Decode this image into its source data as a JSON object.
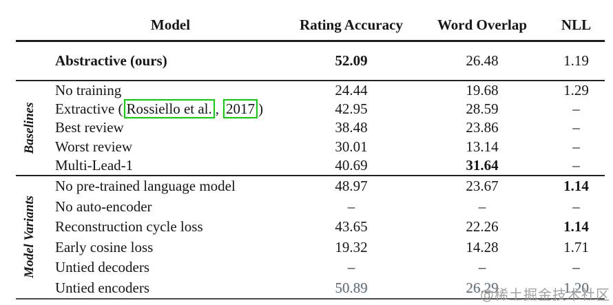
{
  "table": {
    "headers": {
      "model": "Model",
      "rating": "Rating Accuracy",
      "overlap": "Word Overlap",
      "nll": "NLL"
    },
    "top_row": {
      "model": "Abstractive (ours)",
      "rating": "52.09",
      "overlap": "26.48",
      "nll": "1.19"
    },
    "sections": [
      {
        "label": "Baselines",
        "rows": [
          {
            "model": "No training",
            "rating": "24.44",
            "overlap": "19.68",
            "nll": "1.29"
          },
          {
            "model_prefix": "Extractive (",
            "citation_name": "Rossiello et al.",
            "citation_sep": ",",
            "citation_year": "2017",
            "model_suffix": ")",
            "rating": "42.95",
            "overlap": "28.59",
            "nll": "–"
          },
          {
            "model": "Best review",
            "rating": "38.48",
            "overlap": "23.86",
            "nll": "–"
          },
          {
            "model": "Worst review",
            "rating": "30.01",
            "overlap": "13.14",
            "nll": "–"
          },
          {
            "model": "Multi-Lead-1",
            "rating": "40.69",
            "overlap": "31.64",
            "nll": "–"
          }
        ]
      },
      {
        "label": "Model Variants",
        "rows": [
          {
            "model": "No pre-trained language model",
            "rating": "48.97",
            "overlap": "23.67",
            "nll": "1.14"
          },
          {
            "model": "No auto-encoder",
            "rating": "–",
            "overlap": "–",
            "nll": "–"
          },
          {
            "model": "Reconstruction cycle loss",
            "rating": "43.65",
            "overlap": "22.26",
            "nll": "1.14"
          },
          {
            "model": "Early cosine loss",
            "rating": "19.32",
            "overlap": "14.28",
            "nll": "1.71"
          },
          {
            "model": "Untied decoders",
            "rating": "–",
            "overlap": "–",
            "nll": "–"
          },
          {
            "model": "Untied encoders",
            "rating": "50.89",
            "overlap": "26.29",
            "nll": "1.20"
          }
        ]
      }
    ]
  },
  "watermark": "@稀土掘金技术社区",
  "colors": {
    "citation_box": "#00d800",
    "text": "#161616",
    "watermark": "#9b9b9b"
  }
}
